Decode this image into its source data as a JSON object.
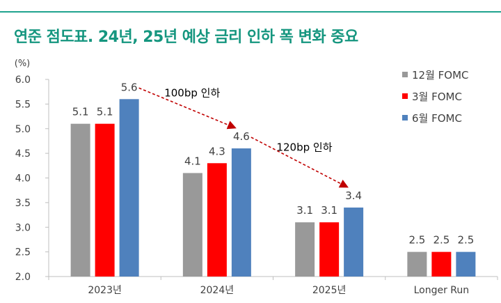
{
  "header": {
    "title": "연준 점도표. 24년, 25년 예상 금리 인하 폭 변화 중요"
  },
  "colors": {
    "accent": "#15967f",
    "dec_fomc": "#999999",
    "mar_fomc": "#ff0000",
    "jun_fomc": "#4f81bd",
    "arrow": "#c00000"
  },
  "chart_data": {
    "type": "bar",
    "title": "연준 점도표. 24년, 25년 예상 금리 인하 폭 변화 중요",
    "ylabel": "(%)",
    "xlabel": "",
    "ylim": [
      2.0,
      6.0
    ],
    "yticks": [
      "6.0",
      "5.5",
      "5.0",
      "4.5",
      "4.0",
      "3.5",
      "3.0",
      "2.5",
      "2.0"
    ],
    "categories": [
      "2023년",
      "2024년",
      "2025년",
      "Longer Run"
    ],
    "series": [
      {
        "name": "12월 FOMC",
        "values": [
          5.1,
          4.1,
          3.1,
          2.5
        ],
        "labels": [
          "5.1",
          "4.1",
          "3.1",
          "2.5"
        ]
      },
      {
        "name": "3월 FOMC",
        "values": [
          5.1,
          4.3,
          3.1,
          2.5
        ],
        "labels": [
          "5.1",
          "4.3",
          "3.1",
          "2.5"
        ]
      },
      {
        "name": "6월 FOMC",
        "values": [
          5.6,
          4.6,
          3.4,
          2.5
        ],
        "labels": [
          "5.6",
          "4.6",
          "3.4",
          "2.5"
        ]
      }
    ],
    "legend_position": "top-right",
    "annotations": [
      {
        "text": "100bp 인하",
        "from": "2023년",
        "to": "2024년",
        "series": "6월 FOMC"
      },
      {
        "text": "120bp 인하",
        "from": "2024년",
        "to": "2025년",
        "series": "6월 FOMC"
      }
    ]
  }
}
